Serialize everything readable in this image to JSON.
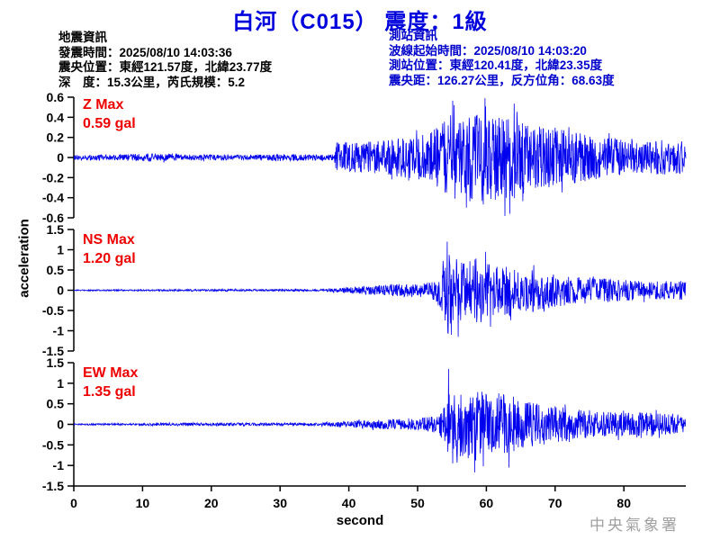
{
  "header": {
    "title": "白河（C015） 震度：1級"
  },
  "quake_info": {
    "heading": "地震資訊",
    "origin_time": "發震時間：2025/08/10 14:03:36",
    "epicenter": "震央位置：東經121.57度，北緯23.77度",
    "depth_magnitude": "深　度：15.3公里，芮氏規模：5.2"
  },
  "station_info": {
    "heading": "測站資訊",
    "wave_start_time": "波線起始時間：2025/08/10 14:03:20",
    "station_location": "測站位置：東經120.41度，北緯23.35度",
    "distance_azimuth": "震央距：126.27公里，反方位角：68.63度"
  },
  "watermark": "中央氣象署",
  "colors": {
    "title_blue": "#0000dd",
    "info_blue": "#0000cc",
    "max_red": "#ee0000",
    "trace_blue": "#0000ee",
    "axis_black": "#000000",
    "watermark_gray": "#a0a0a0"
  },
  "chart_data": {
    "type": "line",
    "xlabel": "second",
    "ylabel": "acceleration",
    "unit": "gal",
    "x_range": [
      0,
      89
    ],
    "x_ticks": [
      0,
      10,
      20,
      30,
      40,
      50,
      60,
      70,
      80
    ],
    "trace_color": "#0000ee",
    "grid": false,
    "channels": [
      {
        "name": "Z",
        "max_label": "Z Max",
        "max_value": "0.59 gal",
        "max_gal": 0.59,
        "ylim": [
          -0.6,
          0.6
        ],
        "y_ticks": [
          "0.6",
          "0.4",
          "0.2",
          "0",
          "-0.2",
          "-0.4",
          "-0.6"
        ],
        "p_arrival_sec": 38,
        "envelope": [
          [
            0,
            0.025
          ],
          [
            5,
            0.03
          ],
          [
            12,
            0.04
          ],
          [
            16,
            0.03
          ],
          [
            24,
            0.025
          ],
          [
            30,
            0.035
          ],
          [
            37.8,
            0.03
          ],
          [
            38.2,
            0.16
          ],
          [
            42,
            0.15
          ],
          [
            46,
            0.18
          ],
          [
            50,
            0.22
          ],
          [
            53,
            0.3
          ],
          [
            55,
            0.45
          ],
          [
            56,
            0.38
          ],
          [
            58,
            0.45
          ],
          [
            60,
            0.5
          ],
          [
            61,
            0.42
          ],
          [
            63,
            0.45
          ],
          [
            65,
            0.38
          ],
          [
            67,
            0.33
          ],
          [
            70,
            0.3
          ],
          [
            73,
            0.26
          ],
          [
            76,
            0.22
          ],
          [
            80,
            0.18
          ],
          [
            83,
            0.15
          ],
          [
            86,
            0.18
          ],
          [
            89,
            0.16
          ]
        ],
        "spikes": [
          [
            55.3,
            0.52
          ],
          [
            57.1,
            -0.5
          ],
          [
            59.8,
            0.59
          ],
          [
            63.4,
            -0.56
          ]
        ]
      },
      {
        "name": "NS",
        "max_label": "NS Max",
        "max_value": "1.20 gal",
        "max_gal": 1.2,
        "ylim": [
          -1.5,
          1.5
        ],
        "y_ticks": [
          "1.5",
          "1",
          "0.5",
          "0",
          "-0.5",
          "-1",
          "-1.5"
        ],
        "p_arrival_sec": 38,
        "envelope": [
          [
            0,
            0.015
          ],
          [
            10,
            0.02
          ],
          [
            20,
            0.025
          ],
          [
            36,
            0.025
          ],
          [
            38,
            0.05
          ],
          [
            41,
            0.08
          ],
          [
            44,
            0.12
          ],
          [
            47,
            0.15
          ],
          [
            50,
            0.18
          ],
          [
            52.5,
            0.25
          ],
          [
            53.8,
            0.6
          ],
          [
            54.4,
            1.1
          ],
          [
            55,
            0.85
          ],
          [
            56,
            0.9
          ],
          [
            57.5,
            0.65
          ],
          [
            59,
            0.85
          ],
          [
            60.5,
            0.7
          ],
          [
            62,
            0.55
          ],
          [
            63.5,
            0.65
          ],
          [
            65,
            0.5
          ],
          [
            67,
            0.55
          ],
          [
            69,
            0.45
          ],
          [
            71,
            0.4
          ],
          [
            73,
            0.35
          ],
          [
            76,
            0.3
          ],
          [
            79,
            0.28
          ],
          [
            82,
            0.24
          ],
          [
            85,
            0.22
          ],
          [
            89,
            0.24
          ]
        ],
        "spikes": [
          [
            54.3,
            1.2
          ],
          [
            54.9,
            -1.1
          ],
          [
            55.9,
            -1.15
          ],
          [
            59.9,
            0.95
          ],
          [
            60.6,
            -0.9
          ]
        ]
      },
      {
        "name": "EW",
        "max_label": "EW Max",
        "max_value": "1.35 gal",
        "max_gal": 1.35,
        "ylim": [
          -1.5,
          1.5
        ],
        "y_ticks": [
          "1.5",
          "1",
          "0.5",
          "0",
          "-0.5",
          "-1",
          "-1.5"
        ],
        "p_arrival_sec": 38,
        "envelope": [
          [
            0,
            0.015
          ],
          [
            10,
            0.03
          ],
          [
            20,
            0.04
          ],
          [
            28,
            0.035
          ],
          [
            36,
            0.035
          ],
          [
            38,
            0.07
          ],
          [
            42,
            0.1
          ],
          [
            46,
            0.12
          ],
          [
            50,
            0.14
          ],
          [
            53,
            0.22
          ],
          [
            54.2,
            0.5
          ],
          [
            54.6,
            1.0
          ],
          [
            55.5,
            0.75
          ],
          [
            57,
            0.85
          ],
          [
            58.5,
            0.95
          ],
          [
            60,
            0.8
          ],
          [
            61.5,
            0.65
          ],
          [
            63,
            0.8
          ],
          [
            64.5,
            0.6
          ],
          [
            66,
            0.55
          ],
          [
            68,
            0.5
          ],
          [
            70,
            0.45
          ],
          [
            72,
            0.4
          ],
          [
            75,
            0.33
          ],
          [
            78,
            0.3
          ],
          [
            81,
            0.28
          ],
          [
            84,
            0.3
          ],
          [
            87,
            0.26
          ],
          [
            89,
            0.24
          ]
        ],
        "spikes": [
          [
            54.5,
            1.35
          ],
          [
            55.1,
            -0.95
          ],
          [
            58.3,
            -1.17
          ],
          [
            63.3,
            -1.05
          ]
        ]
      }
    ]
  }
}
